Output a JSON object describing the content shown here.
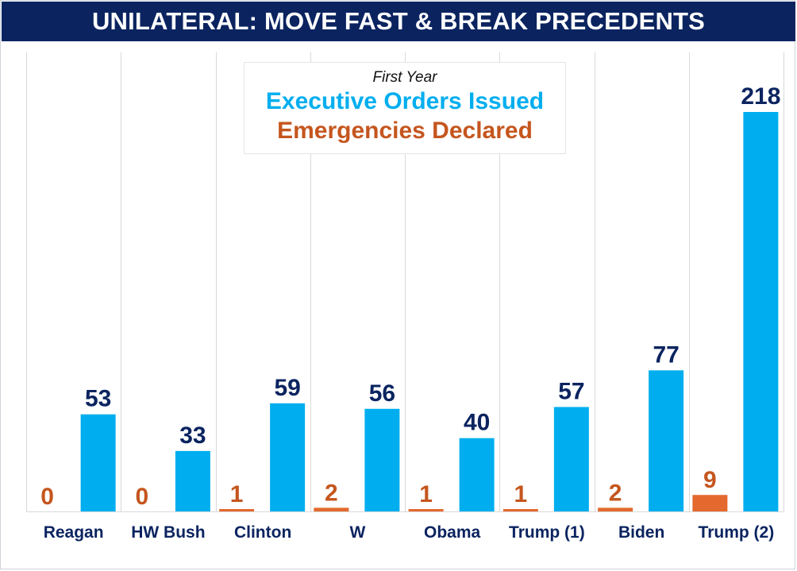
{
  "title": "UNILATERAL: MOVE FAST & BREAK PRECEDENTS",
  "legend": {
    "subtitle": "First Year",
    "executive_orders": "Executive Orders Issued",
    "emergencies": "Emergencies Declared"
  },
  "colors": {
    "title_bg": "#0b2460",
    "executive_orders": "#00aeef",
    "emergencies": "#e4692f",
    "eo_label": "#0b2460",
    "em_label": "#c5561e",
    "category_label": "#0b2460",
    "gridline": "#d9d9d9"
  },
  "chart_data": {
    "type": "bar",
    "title": "UNILATERAL: MOVE FAST & BREAK PRECEDENTS",
    "subtitle": "First Year",
    "xlabel": "",
    "ylabel": "",
    "ylim": [
      0,
      240
    ],
    "grid": false,
    "legend_position": "top-center",
    "categories": [
      "Reagan",
      "HW Bush",
      "Clinton",
      "W",
      "Obama",
      "Trump (1)",
      "Biden",
      "Trump (2)"
    ],
    "series": [
      {
        "name": "Emergencies Declared",
        "values": [
          0,
          0,
          1,
          2,
          1,
          1,
          2,
          9
        ]
      },
      {
        "name": "Executive Orders Issued",
        "values": [
          53,
          33,
          59,
          56,
          40,
          57,
          77,
          218
        ]
      }
    ]
  }
}
